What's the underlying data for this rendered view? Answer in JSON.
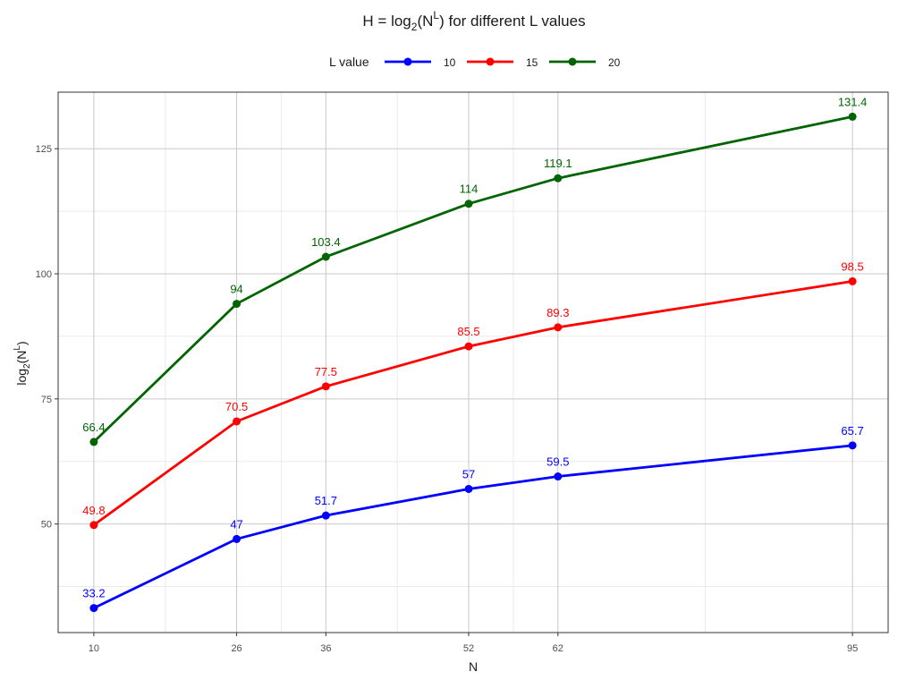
{
  "chart_data": {
    "type": "line",
    "title": {
      "prefix": "H = log",
      "subscript": "2",
      "mid": "(N",
      "superscript": "L",
      "suffix": ") for different L values"
    },
    "xlabel": "N",
    "ylabel": {
      "prefix": "log",
      "subscript": "2",
      "mid": "(N",
      "superscript": "L",
      "suffix": ")"
    },
    "x": [
      10,
      26,
      36,
      52,
      62,
      95
    ],
    "x_ticks": [
      "10",
      "26",
      "36",
      "52",
      "62",
      "95"
    ],
    "y_ticks": [
      "50",
      "75",
      "100",
      "125"
    ],
    "y_tick_values": [
      50,
      75,
      100,
      125
    ],
    "xlim": [
      6,
      99
    ],
    "ylim": [
      28.3,
      136.3
    ],
    "grid": true,
    "legend": {
      "title": "L value",
      "placement": "top"
    },
    "series": [
      {
        "name": "10",
        "color": "#0000ff",
        "values": [
          33.2,
          47,
          51.7,
          57,
          59.5,
          65.7
        ],
        "labels": [
          "33.2",
          "47",
          "51.7",
          "57",
          "59.5",
          "65.7"
        ]
      },
      {
        "name": "15",
        "color": "#ff0000",
        "values": [
          49.8,
          70.5,
          77.5,
          85.5,
          89.3,
          98.5
        ],
        "labels": [
          "49.8",
          "70.5",
          "77.5",
          "85.5",
          "89.3",
          "98.5"
        ]
      },
      {
        "name": "20",
        "color": "#006400",
        "values": [
          66.4,
          94,
          103.4,
          114,
          119.1,
          131.4
        ],
        "labels": [
          "66.4",
          "94",
          "103.4",
          "114",
          "119.1",
          "131.4"
        ]
      }
    ]
  }
}
